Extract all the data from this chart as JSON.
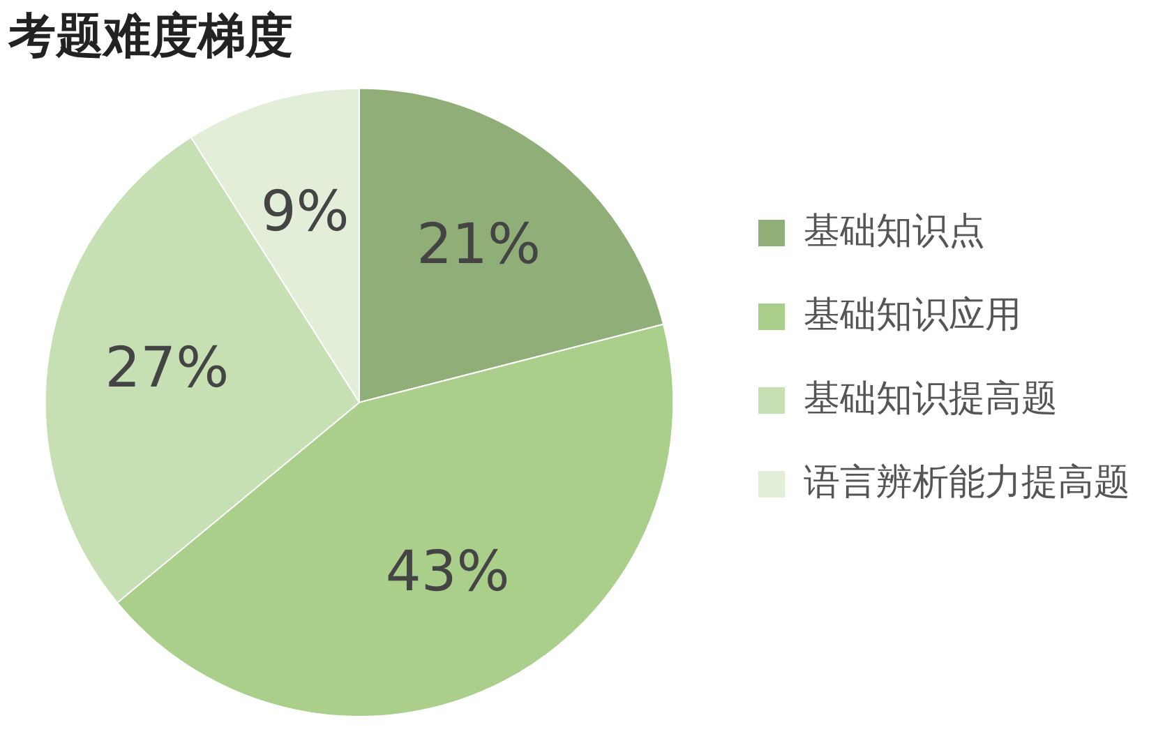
{
  "chart_data": {
    "type": "pie",
    "title": "考题难度梯度",
    "categories": [
      "基础知识点",
      "基础知识应用",
      "基础知识提高题",
      "语言辨析能力提高题"
    ],
    "values": [
      21,
      43,
      27,
      9
    ],
    "value_labels": [
      "21%",
      "43%",
      "27%",
      "9%"
    ],
    "colors": [
      "#8fae78",
      "#a9cf8b",
      "#c7e0b3",
      "#e3eed9"
    ],
    "legend": "right"
  }
}
